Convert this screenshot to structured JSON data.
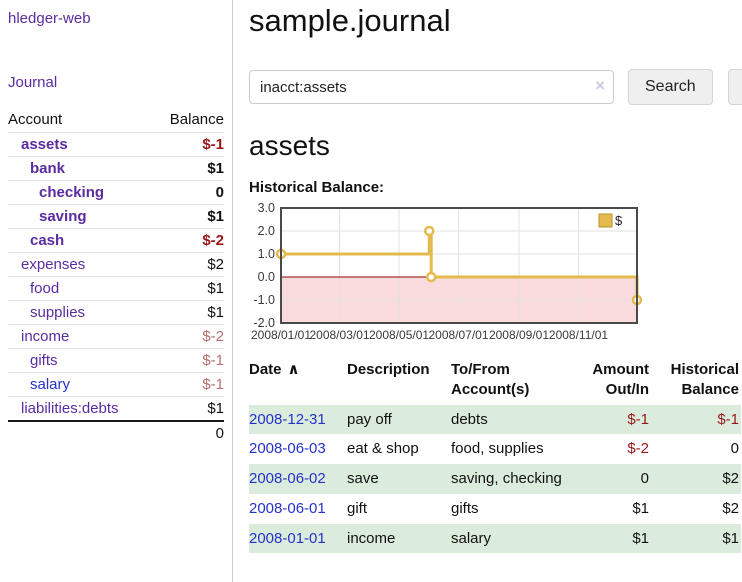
{
  "app": {
    "brand": "hledger-web"
  },
  "nav": {
    "journal_label": "Journal"
  },
  "sidebar": {
    "accounts_header": {
      "account": "Account",
      "balance": "Balance"
    },
    "accounts": [
      {
        "name": "assets",
        "depth": 1,
        "bold": true,
        "blue": false,
        "balance": "$-1",
        "balance_style": "neg-strong"
      },
      {
        "name": "bank",
        "depth": 2,
        "bold": true,
        "blue": false,
        "balance": "$1",
        "balance_style": "pos"
      },
      {
        "name": "checking",
        "depth": 3,
        "bold": true,
        "blue": false,
        "balance": "0",
        "balance_style": "pos"
      },
      {
        "name": "saving",
        "depth": 3,
        "bold": true,
        "blue": false,
        "balance": "$1",
        "balance_style": "pos"
      },
      {
        "name": "cash",
        "depth": 2,
        "bold": true,
        "blue": false,
        "balance": "$-2",
        "balance_style": "neg-strong"
      },
      {
        "name": "expenses",
        "depth": 1,
        "bold": false,
        "blue": false,
        "balance": "$2",
        "balance_style": "pos"
      },
      {
        "name": "food",
        "depth": 2,
        "bold": false,
        "blue": false,
        "balance": "$1",
        "balance_style": "pos"
      },
      {
        "name": "supplies",
        "depth": 2,
        "bold": false,
        "blue": false,
        "balance": "$1",
        "balance_style": "pos"
      },
      {
        "name": "income",
        "depth": 1,
        "bold": false,
        "blue": false,
        "balance": "$-2",
        "balance_style": "neg-soft"
      },
      {
        "name": "gifts",
        "depth": 2,
        "bold": false,
        "blue": false,
        "balance": "$-1",
        "balance_style": "neg-soft"
      },
      {
        "name": "salary",
        "depth": 2,
        "bold": false,
        "blue": true,
        "balance": "$-1",
        "balance_style": "neg-soft"
      },
      {
        "name": "liabilities:debts",
        "depth": 1,
        "bold": false,
        "blue": false,
        "balance": "$1",
        "balance_style": "pos"
      }
    ],
    "total": "0"
  },
  "header": {
    "title": "sample.journal"
  },
  "search": {
    "value": "inacct:assets",
    "clear_icon": "×",
    "button_label": "Search",
    "help_label": "?"
  },
  "main": {
    "account_title": "assets",
    "chart_label": "Historical Balance:"
  },
  "chart_data": {
    "type": "line",
    "title": "Historical Balance:",
    "step": true,
    "series": [
      {
        "name": "$",
        "points": [
          {
            "date": "2008-01-01",
            "value": 1
          },
          {
            "date": "2008-06-01",
            "value": 2
          },
          {
            "date": "2008-06-03",
            "value": 0
          },
          {
            "date": "2008-12-31",
            "value": -1
          }
        ]
      }
    ],
    "x_range": [
      "2008-01-01",
      "2008-12-31"
    ],
    "ylim": [
      -2,
      3
    ],
    "yticks": [
      3.0,
      2.0,
      1.0,
      0.0,
      -1.0,
      -2.0
    ],
    "xticks": [
      "2008/01/01",
      "2008/03/01",
      "2008/05/01",
      "2008/07/01",
      "2008/09/01",
      "2008/11/01"
    ],
    "grid": true,
    "legend": {
      "label": "$",
      "position": "top-right"
    },
    "negative_region": true
  },
  "register": {
    "headers": [
      {
        "label": "Date",
        "sort_icon": "∧",
        "align": "left"
      },
      {
        "label": "Description",
        "align": "left"
      },
      {
        "label": "To/From Account(s)",
        "align": "left"
      },
      {
        "label": "Amount Out/In",
        "align": "right"
      },
      {
        "label": "Historical Balance",
        "align": "right"
      }
    ],
    "rows": [
      {
        "date": "2008-12-31",
        "description": "pay off",
        "accounts": "debts",
        "amount": "$-1",
        "balance": "$-1"
      },
      {
        "date": "2008-06-03",
        "description": "eat & shop",
        "accounts": "food, supplies",
        "amount": "$-2",
        "balance": "0"
      },
      {
        "date": "2008-06-02",
        "description": "save",
        "accounts": "saving, checking",
        "amount": "0",
        "balance": "$2"
      },
      {
        "date": "2008-06-01",
        "description": "gift",
        "accounts": "gifts",
        "amount": "$1",
        "balance": "$2"
      },
      {
        "date": "2008-01-01",
        "description": "income",
        "accounts": "salary",
        "amount": "$1",
        "balance": "$1"
      }
    ]
  },
  "colors": {
    "accent_purple": "#5a2ca0",
    "link_blue": "#2531cc",
    "negative_strong": "#99171b",
    "negative_soft": "#b96f6f",
    "row_stripe_green": "#dcecdc",
    "chart_line_gold": "#e4ba4d",
    "chart_negative_fill": "#f9dbdb",
    "chart_zero_line": "#8b0000",
    "chart_border": "#4a4a4a"
  }
}
